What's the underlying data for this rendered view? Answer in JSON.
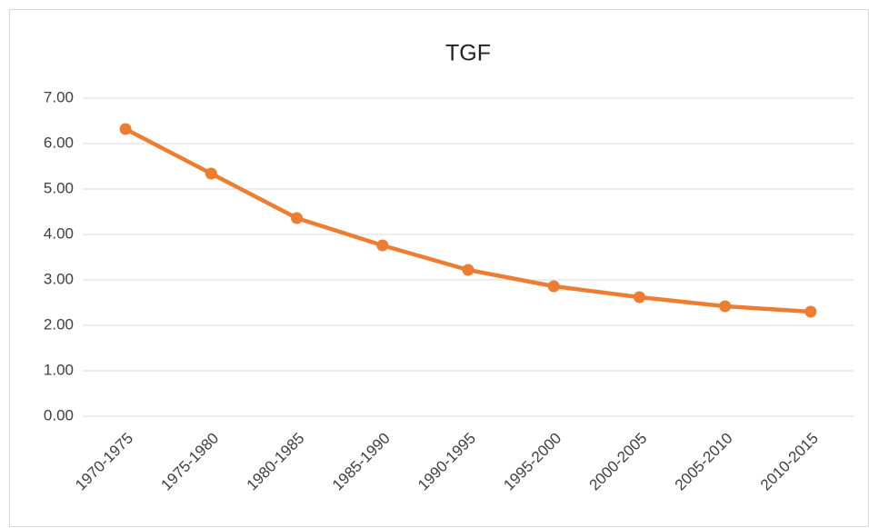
{
  "chart_data": {
    "type": "line",
    "title": "TGF",
    "categories": [
      "1970-1975",
      "1975-1980",
      "1980-1985",
      "1985-1990",
      "1990-1995",
      "1995-2000",
      "2000-2005",
      "2005-2010",
      "2010-2015"
    ],
    "values": [
      6.32,
      5.34,
      4.36,
      3.76,
      3.22,
      2.86,
      2.62,
      2.42,
      2.3
    ],
    "color": "#ed7d31",
    "ylim": [
      0,
      7
    ],
    "yticks": [
      {
        "value": 0,
        "label": "0.00"
      },
      {
        "value": 1,
        "label": "1.00"
      },
      {
        "value": 2,
        "label": "2.00"
      },
      {
        "value": 3,
        "label": "3.00"
      },
      {
        "value": 4,
        "label": "4.00"
      },
      {
        "value": 5,
        "label": "5.00"
      },
      {
        "value": 6,
        "label": "6.00"
      },
      {
        "value": 7,
        "label": "7.00"
      }
    ],
    "grid": true
  }
}
